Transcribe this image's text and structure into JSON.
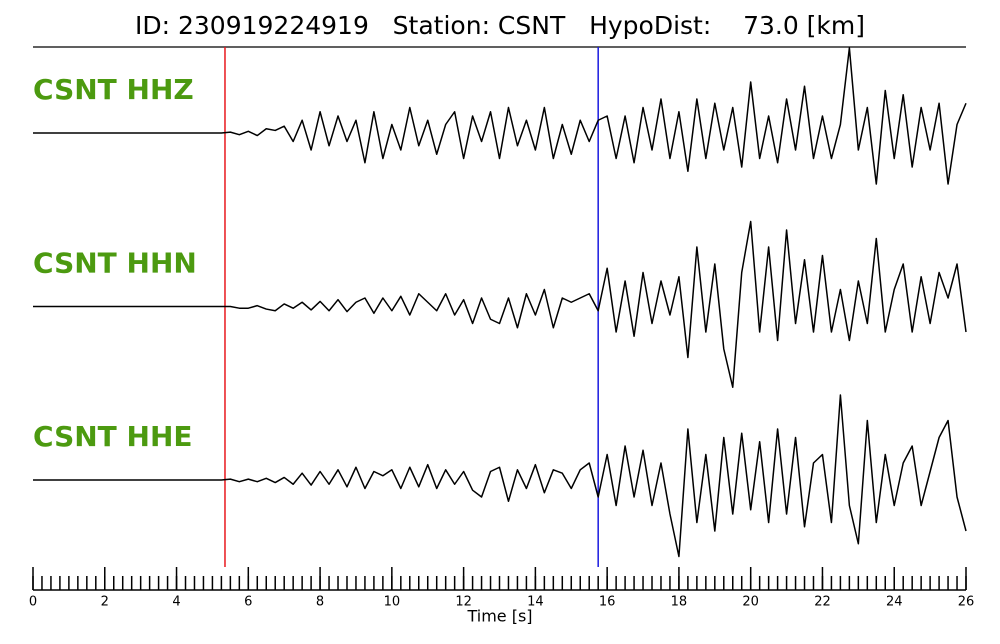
{
  "chart_data": {
    "type": "line",
    "title": "ID: 230919224919   Station: CSNT   HypoDist:    73.0 [km]",
    "xlabel": "Time [s]",
    "xlim": [
      0,
      26
    ],
    "xticks": [
      0,
      2,
      4,
      6,
      8,
      10,
      12,
      14,
      16,
      18,
      20,
      22,
      24,
      26
    ],
    "ylim": [
      -1,
      1
    ],
    "x": [
      0,
      0.25,
      0.5,
      0.75,
      1,
      1.25,
      1.5,
      1.75,
      2,
      2.25,
      2.5,
      2.75,
      3,
      3.25,
      3.5,
      3.75,
      4,
      4.25,
      4.5,
      4.75,
      5,
      5.25,
      5.5,
      5.75,
      6,
      6.25,
      6.5,
      6.75,
      7,
      7.25,
      7.5,
      7.75,
      8,
      8.25,
      8.5,
      8.75,
      9,
      9.25,
      9.5,
      9.75,
      10,
      10.25,
      10.5,
      10.75,
      11,
      11.25,
      11.5,
      11.75,
      12,
      12.25,
      12.5,
      12.75,
      13,
      13.25,
      13.5,
      13.75,
      14,
      14.25,
      14.5,
      14.75,
      15,
      15.25,
      15.5,
      15.75,
      16,
      16.25,
      16.5,
      16.75,
      17,
      17.25,
      17.5,
      17.75,
      18,
      18.25,
      18.5,
      18.75,
      19,
      19.25,
      19.5,
      19.75,
      20,
      20.25,
      20.5,
      20.75,
      21,
      21.25,
      21.5,
      21.75,
      22,
      22.25,
      22.5,
      22.75,
      23,
      23.25,
      23.5,
      23.75,
      24,
      24.25,
      24.5,
      24.75,
      25,
      25.25,
      25.5,
      25.75,
      26
    ],
    "picks": [
      {
        "x": 5.35,
        "color": "#e8191e"
      },
      {
        "x": 15.75,
        "color": "#1a1adf"
      }
    ],
    "label_color": "#4c9a10",
    "series": [
      {
        "name": "CSNT HHZ",
        "color": "#000000",
        "values": [
          0,
          0,
          0,
          0,
          0,
          0,
          0,
          0,
          0,
          0,
          0,
          0,
          0,
          0,
          0,
          0,
          0,
          0,
          0,
          0,
          0,
          0,
          0.01,
          -0.02,
          0.02,
          -0.03,
          0.05,
          0.03,
          0.08,
          -0.1,
          0.15,
          -0.2,
          0.25,
          -0.15,
          0.2,
          -0.1,
          0.15,
          -0.35,
          0.25,
          -0.3,
          0.1,
          -0.2,
          0.3,
          -0.15,
          0.15,
          -0.25,
          0.1,
          0.25,
          -0.3,
          0.2,
          -0.1,
          0.25,
          -0.3,
          0.3,
          -0.15,
          0.15,
          -0.2,
          0.3,
          -0.3,
          0.1,
          -0.25,
          0.15,
          -0.1,
          0.15,
          0.2,
          -0.3,
          0.2,
          -0.35,
          0.3,
          -0.2,
          0.4,
          -0.3,
          0.25,
          -0.45,
          0.4,
          -0.3,
          0.35,
          -0.2,
          0.3,
          -0.4,
          0.6,
          -0.3,
          0.2,
          -0.35,
          0.4,
          -0.2,
          0.55,
          -0.3,
          0.2,
          -0.3,
          0.1,
          1.0,
          -0.2,
          0.3,
          -0.6,
          0.5,
          -0.3,
          0.45,
          -0.4,
          0.3,
          -0.2,
          0.35,
          -0.6,
          0.1,
          0.35
        ]
      },
      {
        "name": "CSNT HHN",
        "color": "#000000",
        "values": [
          0,
          0,
          0,
          0,
          0,
          0,
          0,
          0,
          0,
          0,
          0,
          0,
          0,
          0,
          0,
          0,
          0,
          0,
          0,
          0,
          0,
          0,
          0,
          -0.02,
          -0.02,
          0.01,
          -0.03,
          -0.05,
          0.03,
          -0.02,
          0.05,
          -0.04,
          0.06,
          -0.05,
          0.08,
          -0.06,
          0.05,
          0.1,
          -0.08,
          0.1,
          -0.05,
          0.12,
          -0.1,
          0.15,
          0.05,
          -0.05,
          0.15,
          -0.1,
          0.08,
          -0.2,
          0.1,
          -0.15,
          -0.2,
          0.1,
          -0.25,
          0.15,
          -0.1,
          0.2,
          -0.25,
          0.1,
          0.05,
          0.1,
          0.15,
          -0.05,
          0.45,
          -0.3,
          0.3,
          -0.35,
          0.4,
          -0.2,
          0.3,
          -0.1,
          0.35,
          -0.6,
          0.7,
          -0.3,
          0.5,
          -0.5,
          -0.95,
          0.4,
          1.0,
          -0.3,
          0.7,
          -0.4,
          0.9,
          -0.2,
          0.55,
          -0.3,
          0.6,
          -0.3,
          0.2,
          -0.4,
          0.3,
          -0.2,
          0.8,
          -0.3,
          0.2,
          0.5,
          -0.3,
          0.35,
          -0.2,
          0.4,
          0.1,
          0.5,
          -0.3
        ]
      },
      {
        "name": "CSNT HHE",
        "color": "#000000",
        "values": [
          0,
          0,
          0,
          0,
          0,
          0,
          0,
          0,
          0,
          0,
          0,
          0,
          0,
          0,
          0,
          0,
          0,
          0,
          0,
          0,
          0,
          0,
          0.01,
          -0.02,
          0.01,
          -0.02,
          0.02,
          -0.03,
          0.03,
          -0.05,
          0.08,
          -0.06,
          0.1,
          -0.05,
          0.12,
          -0.08,
          0.15,
          -0.1,
          0.1,
          0.05,
          0.12,
          -0.1,
          0.15,
          -0.08,
          0.18,
          -0.1,
          0.12,
          -0.05,
          0.1,
          -0.12,
          -0.2,
          0.1,
          0.15,
          -0.25,
          0.12,
          -0.1,
          0.18,
          -0.15,
          0.12,
          0.08,
          -0.1,
          0.12,
          0.2,
          -0.2,
          0.3,
          -0.3,
          0.4,
          -0.2,
          0.35,
          -0.3,
          0.2,
          -0.4,
          -0.9,
          0.6,
          -0.5,
          0.3,
          -0.6,
          0.5,
          -0.4,
          0.55,
          -0.35,
          0.45,
          -0.5,
          0.6,
          -0.4,
          0.5,
          -0.55,
          0.2,
          0.3,
          -0.5,
          1.0,
          -0.3,
          -0.75,
          0.7,
          -0.5,
          0.3,
          -0.3,
          0.2,
          0.4,
          -0.3,
          0.1,
          0.5,
          0.7,
          -0.2,
          -0.6
        ]
      }
    ]
  }
}
